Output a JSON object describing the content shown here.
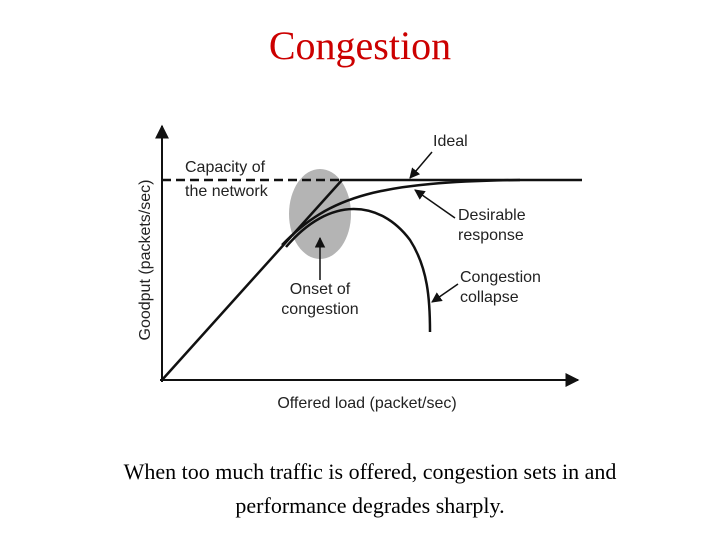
{
  "title": "Congestion",
  "diagram": {
    "y_axis_label": "Goodput (packets/sec)",
    "x_axis_label": "Offered load (packet/sec)",
    "capacity_label": [
      "Capacity of",
      "the network"
    ],
    "ideal_label": "Ideal",
    "desirable_label": [
      "Desirable",
      "response"
    ],
    "onset_label": [
      "Onset of",
      "congestion"
    ],
    "collapse_label": [
      "Congestion",
      "collapse"
    ]
  },
  "caption": "When too much traffic is offered, congestion sets in and performance degrades sharply."
}
